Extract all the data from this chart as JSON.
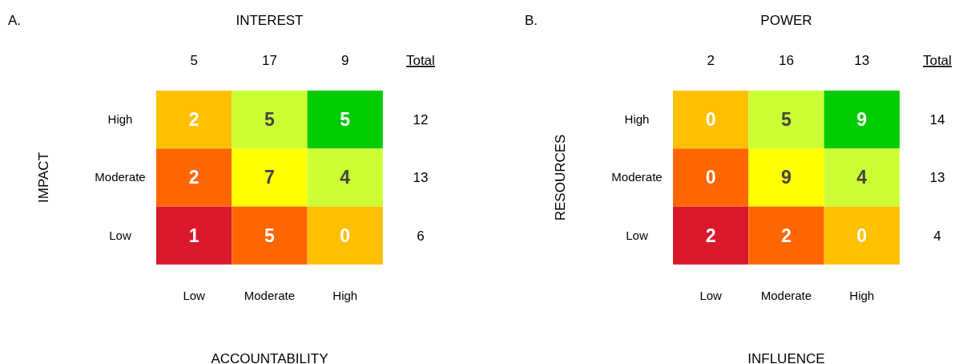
{
  "chart_data": [
    {
      "type": "heatmap",
      "title": "A.",
      "x2label": "INTEREST",
      "xlabel": "ACCOUNTABILITY",
      "ylabel": "IMPACT",
      "categories": [
        "Low",
        "Moderate",
        "High"
      ],
      "y_categories": [
        "High",
        "Moderate",
        "Low"
      ],
      "y2_categories": [
        "12",
        "13",
        "6"
      ],
      "cells": [
        [
          2,
          5,
          5
        ],
        [
          2,
          7,
          4
        ],
        [
          1,
          5,
          0
        ]
      ],
      "colors": [
        [
          "#ffc000",
          "#ccff33",
          "#00cc00"
        ],
        [
          "#ff6600",
          "#ffff00",
          "#ccff33"
        ],
        [
          "#d9192b",
          "#ff6600",
          "#ffc000"
        ]
      ],
      "data_labels": true,
      "annotations": [
        "5",
        "17",
        "9",
        "Total"
      ]
    },
    {
      "type": "heatmap",
      "title": "B.",
      "x2label": "POWER",
      "xlabel": "INFLUENCE",
      "ylabel": "RESOURCES",
      "categories": [
        "Low",
        "Moderate",
        "High"
      ],
      "y_categories": [
        "High",
        "Moderate",
        "Low"
      ],
      "y2_categories": [
        "14",
        "13",
        "4"
      ],
      "cells": [
        [
          0,
          5,
          9
        ],
        [
          0,
          9,
          4
        ],
        [
          2,
          2,
          0
        ]
      ],
      "colors": [
        [
          "#ffc000",
          "#ccff33",
          "#00cc00"
        ],
        [
          "#ff6600",
          "#ffff00",
          "#ccff33"
        ],
        [
          "#d9192b",
          "#ff6600",
          "#ffc000"
        ]
      ],
      "data_labels": true,
      "annotations": [
        "2",
        "16",
        "13",
        "Total"
      ]
    }
  ]
}
